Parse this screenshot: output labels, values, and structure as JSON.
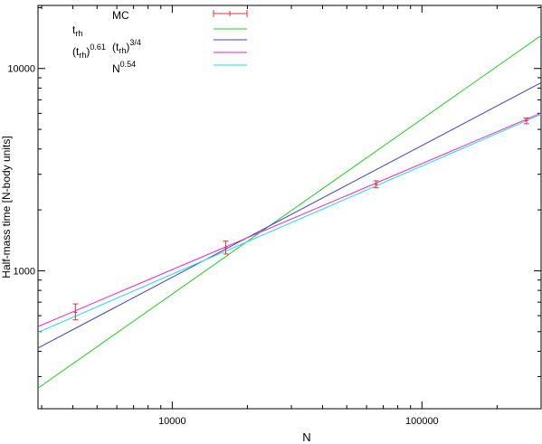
{
  "chart_data": {
    "type": "line",
    "xlabel": "N",
    "ylabel": "Half-mass time [N-body units]",
    "xscale": "log",
    "yscale": "log",
    "xlim": [
      2900,
      300000
    ],
    "ylim": [
      208,
      20500
    ],
    "x_ticks": [
      {
        "value": 10000,
        "label": "10000"
      },
      {
        "value": 100000,
        "label": "100000"
      }
    ],
    "y_ticks": [
      {
        "value": 1000,
        "label": "1000"
      },
      {
        "value": 10000,
        "label": "10000"
      }
    ],
    "grid": false,
    "legend_placement": "top-left",
    "series": [
      {
        "kind": "errorbar",
        "legend_label": "MC",
        "color": "#e8303a",
        "points": [
          {
            "x": 4096,
            "y": 623,
            "ylo": 572,
            "yhi": 686
          },
          {
            "x": 16384,
            "y": 1299,
            "ylo": 1210,
            "yhi": 1402
          },
          {
            "x": 65536,
            "y": 2674,
            "ylo": 2570,
            "yhi": 2785
          },
          {
            "x": 262144,
            "y": 5510,
            "ylo": 5330,
            "yhi": 5690
          }
        ]
      },
      {
        "kind": "line",
        "legend_label": "t_rh",
        "color": "#22cc22",
        "points": [
          {
            "x": 2900,
            "y": 263
          },
          {
            "x": 300000,
            "y": 14550
          }
        ]
      },
      {
        "kind": "line",
        "legend_label": "(t_rh)^3/4",
        "color": "#4040c8",
        "points": [
          {
            "x": 2900,
            "y": 415
          },
          {
            "x": 300000,
            "y": 8510
          }
        ]
      },
      {
        "kind": "line",
        "legend_label": "(t_rh)^0.61",
        "color": "#ee22cc",
        "points": [
          {
            "x": 2900,
            "y": 530
          },
          {
            "x": 300000,
            "y": 6020
          }
        ]
      },
      {
        "kind": "line",
        "legend_label": "N^0.54",
        "color": "#22dddd",
        "points": [
          {
            "x": 2900,
            "y": 496
          },
          {
            "x": 300000,
            "y": 5930
          }
        ]
      }
    ]
  },
  "legend": {
    "mc": "MC",
    "trh_base": "t",
    "trh_sub": "rh",
    "pow34_base_open": "(t",
    "pow34_sub": "rh",
    "pow34_close": ")",
    "pow34_sup": "3/4",
    "pow061_base_open": "(t",
    "pow061_sub": "rh",
    "pow061_close": ")",
    "pow061_sup": "0.61",
    "n054_base": "N",
    "n054_sup": "0.54"
  }
}
